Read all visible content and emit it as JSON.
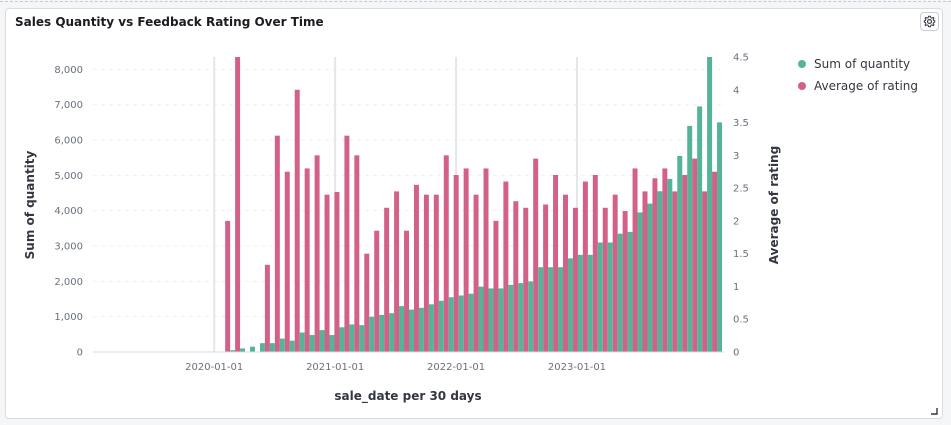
{
  "panel": {
    "title": "Sales Quantity vs Feedback Rating Over Time",
    "settings_icon": "gear-icon",
    "resize_icon": "resize-corner-icon"
  },
  "chart_data": {
    "type": "bar",
    "title": "Sales Quantity vs Feedback Rating Over Time",
    "xlabel": "sale_date per 30 days",
    "ylabel_left": "Sum of quantity",
    "ylabel_right": "Average of rating",
    "x_ticks": [
      "2020-01-01",
      "2021-01-01",
      "2022-01-01",
      "2023-01-01"
    ],
    "y_left_ticks": [
      "0",
      "1,000",
      "2,000",
      "3,000",
      "4,000",
      "5,000",
      "6,000",
      "7,000",
      "8,000"
    ],
    "y_right_ticks": [
      "0",
      "0.5",
      "1",
      "1.5",
      "2",
      "2.5",
      "3",
      "3.5",
      "4",
      "4.5"
    ],
    "ylim_left": [
      0,
      8350
    ],
    "ylim_right": [
      0,
      4.5
    ],
    "grid": true,
    "legend_position": "right",
    "colors": {
      "quantity": "#54b399",
      "rating": "#d36086",
      "year_line": "#e4e6ea",
      "grid": "#eef0f3"
    },
    "series": [
      {
        "name": "Sum of quantity",
        "axis": "left",
        "values": [
          0,
          0,
          0,
          0,
          0,
          0,
          0,
          0,
          0,
          0,
          0,
          0,
          0,
          50,
          100,
          150,
          250,
          250,
          380,
          320,
          550,
          480,
          620,
          480,
          700,
          780,
          760,
          1000,
          1050,
          1100,
          1300,
          1200,
          1250,
          1350,
          1450,
          1550,
          1600,
          1650,
          1850,
          1800,
          1800,
          1900,
          1950,
          2000,
          2400,
          2400,
          2400,
          2650,
          2750,
          2750,
          3100,
          3100,
          3350,
          3400,
          3950,
          4200,
          4550,
          4900,
          5550,
          6400,
          6950,
          8350,
          6500
        ]
      },
      {
        "name": "Average of rating",
        "axis": "right",
        "values": [
          0,
          0,
          0,
          0,
          0,
          0,
          0,
          0,
          0,
          0,
          0,
          0,
          0,
          2.0,
          4.5,
          0,
          0,
          1.33,
          3.3,
          2.75,
          4.0,
          2.8,
          3.0,
          2.4,
          2.44,
          3.3,
          3.0,
          1.5,
          1.85,
          2.2,
          2.45,
          1.85,
          2.55,
          2.4,
          2.4,
          3.0,
          2.7,
          2.8,
          2.4,
          2.8,
          2.0,
          2.6,
          2.3,
          2.2,
          2.95,
          2.25,
          2.7,
          2.4,
          2.2,
          2.6,
          2.7,
          2.2,
          2.4,
          2.15,
          2.8,
          2.45,
          2.65,
          2.8,
          2.45,
          2.7,
          2.95,
          2.45,
          2.75
        ]
      }
    ]
  }
}
